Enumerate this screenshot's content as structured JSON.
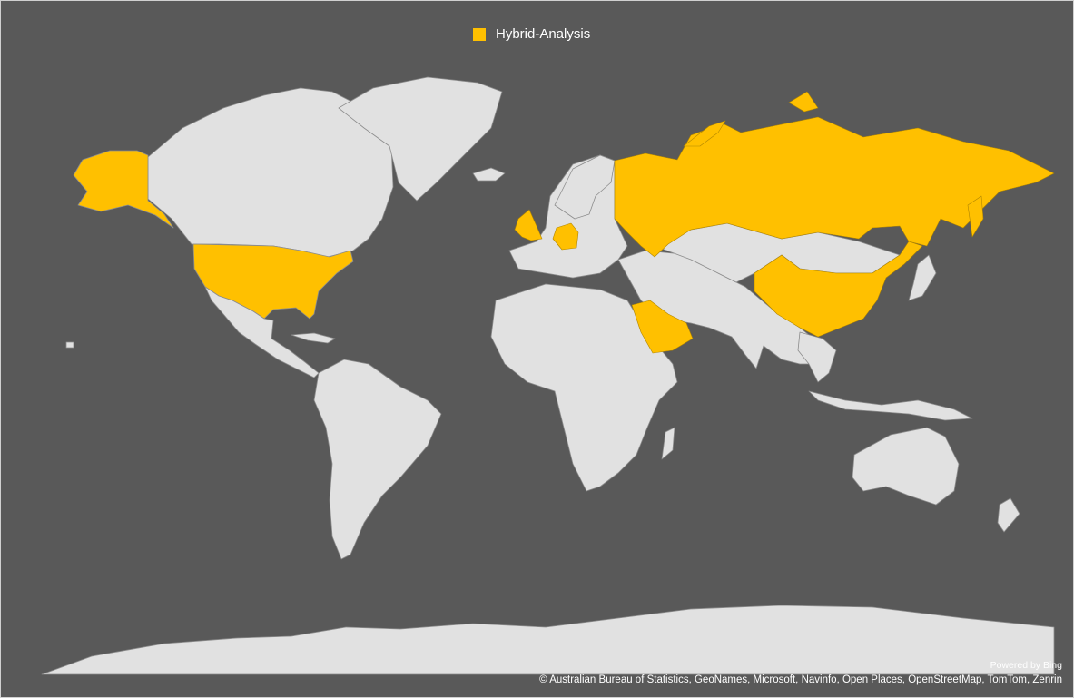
{
  "legend": {
    "label": "Hybrid-Analysis",
    "color": "#ffc000"
  },
  "colors": {
    "background": "#595959",
    "land": "#e1e1e1",
    "highlight": "#ffc000"
  },
  "highlighted_regions": [
    "Alaska",
    "United States",
    "United Kingdom",
    "Germany",
    "Russia",
    "China",
    "Saudi Arabia"
  ],
  "attribution": {
    "powered_by": "Powered by Bing",
    "copyright": "© Australian Bureau of Statistics, GeoNames, Microsoft, Navinfo, Open Places, OpenStreetMap, TomTom, Zenrin"
  }
}
